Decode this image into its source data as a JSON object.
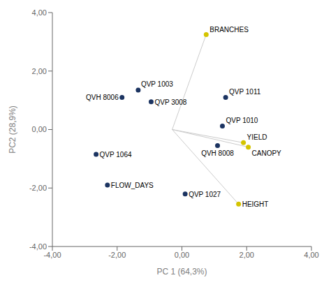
{
  "chart_data": {
    "type": "scatter",
    "xlabel": "PC 1 (64,3%)",
    "ylabel": "PC2 (28,9%)",
    "xlim": [
      -4,
      4
    ],
    "ylim": [
      -4,
      4
    ],
    "xticks": [
      {
        "value": -4,
        "label": "-4,00"
      },
      {
        "value": -2,
        "label": "-2,00"
      },
      {
        "value": 0,
        "label": "0,00"
      },
      {
        "value": 2,
        "label": "2,00"
      },
      {
        "value": 4,
        "label": "4,00"
      }
    ],
    "yticks": [
      {
        "value": -4,
        "label": "-4,00"
      },
      {
        "value": -2,
        "label": "-2,00"
      },
      {
        "value": 0,
        "label": "0,00"
      },
      {
        "value": 2,
        "label": "2,00"
      },
      {
        "value": 4,
        "label": "4,00"
      }
    ],
    "grid": false,
    "series": [
      {
        "type": "scatter",
        "color": "#1c3461",
        "points": [
          {
            "label": "QVP 1003",
            "x": -1.35,
            "y": 1.35
          },
          {
            "label": "QVH 8006",
            "x": -1.85,
            "y": 1.1
          },
          {
            "label": "QVP 3008",
            "x": -0.95,
            "y": 0.95
          },
          {
            "label": "QVP 1011",
            "x": 1.35,
            "y": 1.1
          },
          {
            "label": "QVP 1010",
            "x": 1.25,
            "y": 0.12
          },
          {
            "label": "QVH 8008",
            "x": 1.1,
            "y": -0.55
          },
          {
            "label": "QVP 1064",
            "x": -2.65,
            "y": -0.85
          },
          {
            "label": "QVP 1027",
            "x": 0.1,
            "y": -2.2
          },
          {
            "label": "FLOW_DAYS",
            "x": -2.3,
            "y": -1.9
          }
        ]
      },
      {
        "type": "vector",
        "color": "#d4c400",
        "origin": [
          -0.3,
          0.0
        ],
        "points": [
          {
            "label": "BRANCHES",
            "x": 0.75,
            "y": 3.25
          },
          {
            "label": "YIELD",
            "x": 1.9,
            "y": -0.45
          },
          {
            "label": "CANOPY",
            "x": 2.05,
            "y": -0.6
          },
          {
            "label": "HEIGHT",
            "x": 1.75,
            "y": -2.55
          }
        ]
      }
    ]
  }
}
